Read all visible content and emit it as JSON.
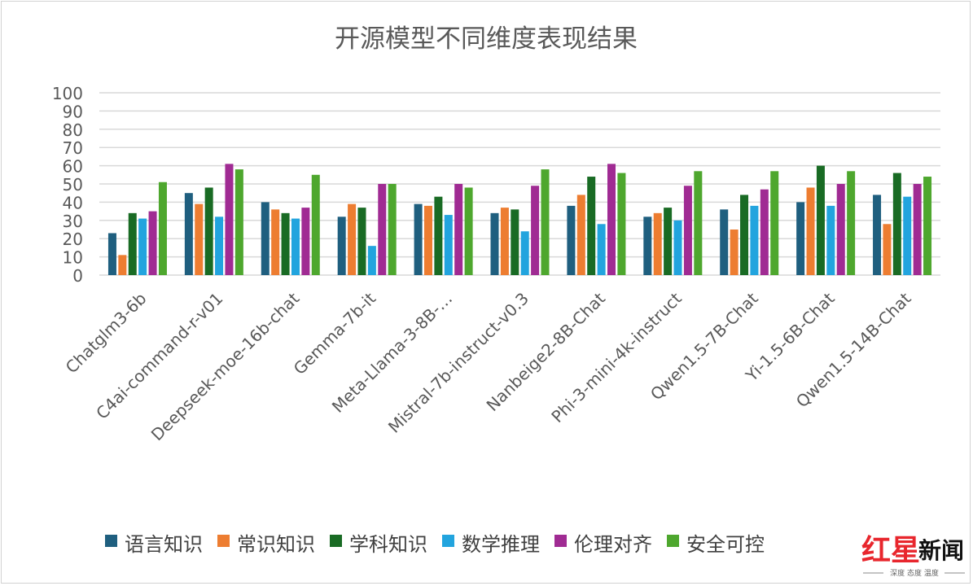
{
  "chart_data": {
    "type": "bar",
    "title": "开源模型不同维度表现结果",
    "xlabel": "",
    "ylabel": "",
    "ylim": [
      0,
      100
    ],
    "yticks": [
      0,
      10,
      20,
      30,
      40,
      50,
      60,
      70,
      80,
      90,
      100
    ],
    "grid": true,
    "legend_position": "bottom",
    "categories": [
      "Chatglm3-6b",
      "C4ai-command-r-v01",
      "Deepseek-moe-16b-chat",
      "Gemma-7b-it",
      "Meta-Llama-3-8B-…",
      "Mistral-7b-instruct-v0.3",
      "Nanbeige2-8B-Chat",
      "Phi-3-mini-4k-instruct",
      "Qwen1.5-7B-Chat",
      "Yi-1.5-6B-Chat",
      "Qwen1.5-14B-Chat"
    ],
    "series": [
      {
        "name": "语言知识",
        "color": "#1f5f7f",
        "values": [
          23,
          45,
          40,
          32,
          39,
          34,
          38,
          32,
          36,
          40,
          44
        ]
      },
      {
        "name": "常识知识",
        "color": "#ed7d31",
        "values": [
          11,
          39,
          36,
          39,
          38,
          37,
          44,
          34,
          25,
          48,
          28
        ]
      },
      {
        "name": "学科知识",
        "color": "#196b24",
        "values": [
          34,
          48,
          34,
          37,
          43,
          36,
          54,
          37,
          44,
          60,
          56
        ]
      },
      {
        "name": "数学推理",
        "color": "#22a4de",
        "values": [
          31,
          32,
          31,
          16,
          33,
          24,
          28,
          30,
          38,
          38,
          43
        ]
      },
      {
        "name": "伦理对齐",
        "color": "#a02b93",
        "values": [
          35,
          61,
          37,
          50,
          50,
          49,
          61,
          49,
          47,
          50,
          50
        ]
      },
      {
        "name": "安全可控",
        "color": "#4ea72e",
        "values": [
          51,
          58,
          55,
          50,
          48,
          58,
          56,
          57,
          57,
          57,
          54
        ]
      }
    ]
  },
  "watermark": {
    "main_red": "红星",
    "main_black": "新闻",
    "sub": "深度 态度 温度"
  }
}
